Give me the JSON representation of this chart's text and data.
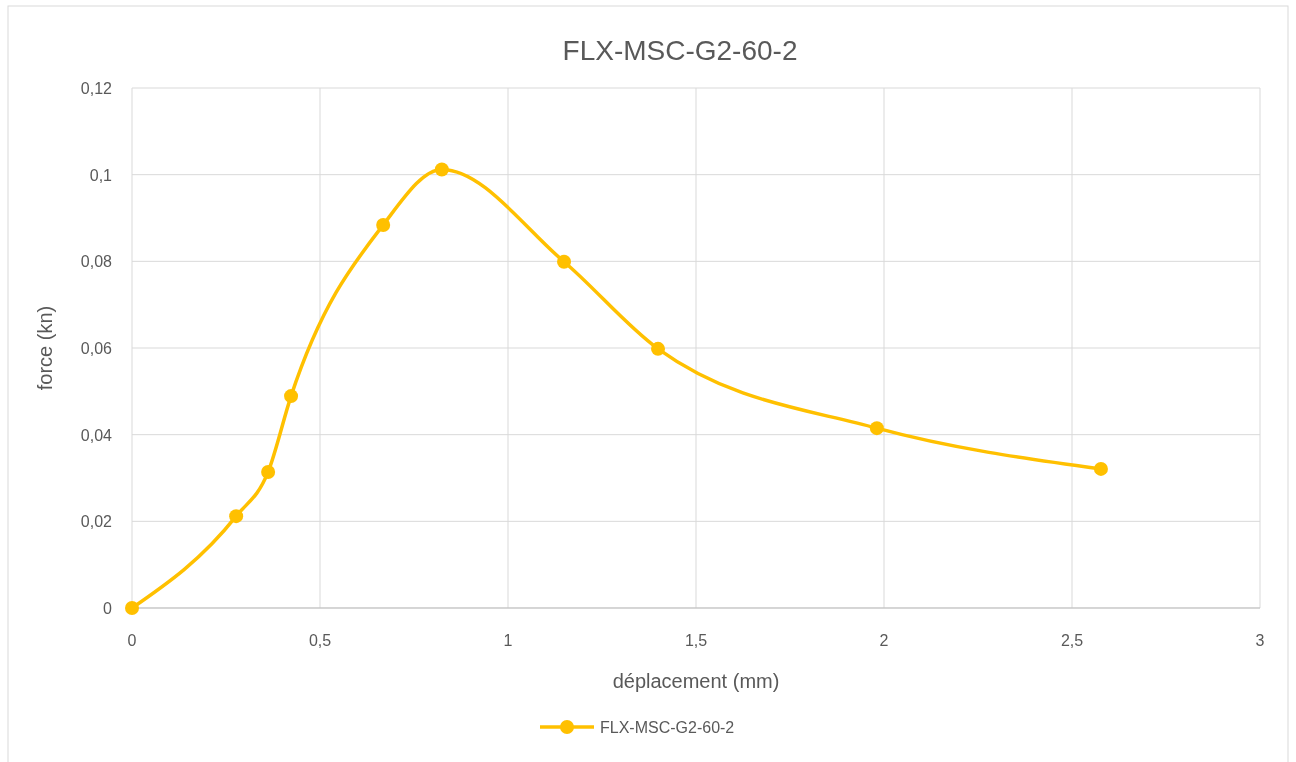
{
  "chart_data": {
    "type": "line",
    "title": "FLX-MSC-G2-60-2",
    "xlabel": "déplacement (mm)",
    "ylabel": "force (kn)",
    "x": [
      0,
      0.277,
      0.362,
      0.423,
      0.668,
      0.824,
      1.149,
      1.399,
      1.981,
      2.577
    ],
    "series": [
      {
        "name": "FLX-MSC-G2-60-2",
        "color": "#ffc000",
        "values": [
          0,
          0.0212,
          0.0314,
          0.0489,
          0.0884,
          0.1012,
          0.0799,
          0.0598,
          0.0415,
          0.0321
        ]
      }
    ],
    "xlim": [
      0,
      3
    ],
    "xticks": [
      0,
      {
        "value": 0.5,
        "label": "0,5"
      },
      1,
      {
        "value": 1.5,
        "label": "1,5"
      },
      2,
      {
        "value": 2.5,
        "label": "2,5"
      },
      3
    ],
    "ylim": [
      0,
      0.12
    ],
    "yticks": [
      0,
      {
        "value": 0.02,
        "label": "0,02"
      },
      {
        "value": 0.04,
        "label": "0,04"
      },
      {
        "value": 0.06,
        "label": "0,06"
      },
      {
        "value": 0.08,
        "label": "0,08"
      },
      {
        "value": 0.1,
        "label": "0,1"
      },
      {
        "value": 0.12,
        "label": "0,12"
      }
    ],
    "grid": true,
    "legend": "bottom",
    "marker": "circle",
    "line_style": "solid"
  }
}
